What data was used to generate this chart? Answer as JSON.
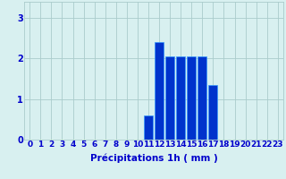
{
  "hours": [
    0,
    1,
    2,
    3,
    4,
    5,
    6,
    7,
    8,
    9,
    10,
    11,
    12,
    13,
    14,
    15,
    16,
    17,
    18,
    19,
    20,
    21,
    22,
    23
  ],
  "values": [
    0,
    0,
    0,
    0,
    0,
    0,
    0,
    0,
    0,
    0,
    0,
    0.6,
    2.4,
    2.05,
    2.05,
    2.05,
    2.05,
    1.35,
    0,
    0,
    0,
    0,
    0,
    0
  ],
  "bar_color": "#0033cc",
  "bar_edge_color": "#3399ff",
  "background_color": "#d8f0f0",
  "grid_color": "#aacccc",
  "xlabel": "Précipitations 1h ( mm )",
  "xlabel_color": "#0000cc",
  "xlabel_fontsize": 7.5,
  "tick_color": "#0000cc",
  "tick_fontsize": 6.5,
  "ylim": [
    0,
    3.4
  ],
  "yticks": [
    0,
    1,
    2,
    3
  ],
  "xtick_labels": [
    "0",
    "1",
    "2",
    "3",
    "4",
    "5",
    "6",
    "7",
    "8",
    "9",
    "10",
    "11",
    "12",
    "13",
    "14",
    "15",
    "16",
    "17",
    "18",
    "19",
    "20",
    "21",
    "22",
    "23"
  ]
}
